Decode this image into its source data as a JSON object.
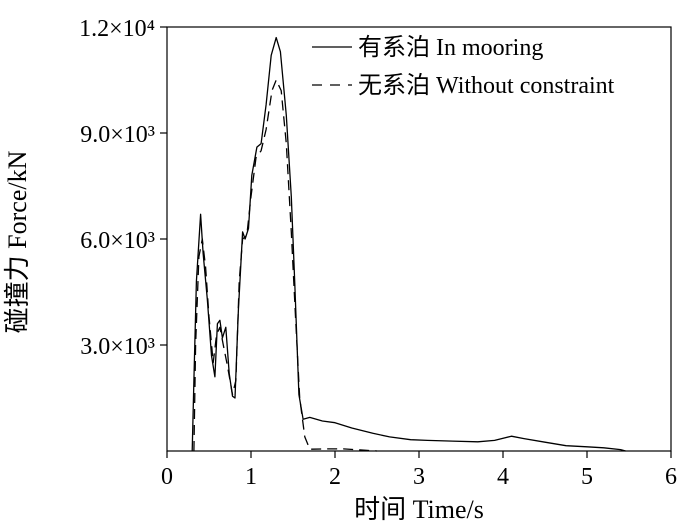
{
  "chart_data": {
    "type": "line",
    "xlabel": "时间 Time/s",
    "ylabel": "碰撞力 Force/kN",
    "xlim": [
      0,
      6
    ],
    "ylim": [
      0,
      12000
    ],
    "x_ticks": [
      0,
      1,
      2,
      3,
      4,
      5,
      6
    ],
    "x_tick_labels": [
      "0",
      "1",
      "2",
      "3",
      "4",
      "5",
      "6"
    ],
    "y_ticks": [
      3000,
      6000,
      9000,
      12000
    ],
    "y_tick_labels": [
      "3.0×10³",
      "6.0×10³",
      "9.0×10³",
      "1.2×10⁴"
    ],
    "grid": false,
    "legend_position": "top-right",
    "series": [
      {
        "name": "有系泊 In mooring",
        "style": "solid",
        "color": "#000000",
        "points": [
          [
            0.3,
            0
          ],
          [
            0.32,
            2000
          ],
          [
            0.35,
            4800
          ],
          [
            0.4,
            6700
          ],
          [
            0.43,
            5600
          ],
          [
            0.48,
            4300
          ],
          [
            0.53,
            2700
          ],
          [
            0.57,
            2100
          ],
          [
            0.6,
            3600
          ],
          [
            0.63,
            3700
          ],
          [
            0.66,
            3200
          ],
          [
            0.7,
            3500
          ],
          [
            0.74,
            2200
          ],
          [
            0.78,
            1550
          ],
          [
            0.81,
            1500
          ],
          [
            0.85,
            4000
          ],
          [
            0.9,
            6200
          ],
          [
            0.93,
            6000
          ],
          [
            0.97,
            6300
          ],
          [
            1.01,
            7800
          ],
          [
            1.07,
            8600
          ],
          [
            1.12,
            8700
          ],
          [
            1.18,
            9800
          ],
          [
            1.24,
            11200
          ],
          [
            1.3,
            11700
          ],
          [
            1.35,
            11300
          ],
          [
            1.42,
            9500
          ],
          [
            1.48,
            7200
          ],
          [
            1.52,
            4800
          ],
          [
            1.57,
            1600
          ],
          [
            1.62,
            900
          ],
          [
            1.7,
            950
          ],
          [
            1.85,
            850
          ],
          [
            2.0,
            800
          ],
          [
            2.2,
            650
          ],
          [
            2.45,
            500
          ],
          [
            2.65,
            400
          ],
          [
            2.9,
            320
          ],
          [
            3.1,
            300
          ],
          [
            3.4,
            280
          ],
          [
            3.7,
            260
          ],
          [
            3.9,
            300
          ],
          [
            4.1,
            420
          ],
          [
            4.25,
            350
          ],
          [
            4.5,
            250
          ],
          [
            4.75,
            150
          ],
          [
            5.0,
            120
          ],
          [
            5.2,
            90
          ],
          [
            5.4,
            40
          ],
          [
            5.46,
            0
          ]
        ]
      },
      {
        "name": "无系泊 Without constraint",
        "style": "dashed",
        "color": "#000000",
        "points": [
          [
            0.32,
            0
          ],
          [
            0.34,
            3000
          ],
          [
            0.38,
            5500
          ],
          [
            0.42,
            6000
          ],
          [
            0.46,
            5200
          ],
          [
            0.5,
            3800
          ],
          [
            0.55,
            2500
          ],
          [
            0.59,
            3300
          ],
          [
            0.63,
            3500
          ],
          [
            0.67,
            3000
          ],
          [
            0.72,
            2400
          ],
          [
            0.78,
            1600
          ],
          [
            0.82,
            2000
          ],
          [
            0.86,
            4800
          ],
          [
            0.9,
            6000
          ],
          [
            0.95,
            6100
          ],
          [
            1.0,
            7200
          ],
          [
            1.06,
            8300
          ],
          [
            1.12,
            8500
          ],
          [
            1.18,
            9100
          ],
          [
            1.25,
            10200
          ],
          [
            1.3,
            10500
          ],
          [
            1.36,
            10200
          ],
          [
            1.42,
            8700
          ],
          [
            1.48,
            6200
          ],
          [
            1.53,
            3800
          ],
          [
            1.58,
            1500
          ],
          [
            1.64,
            400
          ],
          [
            1.7,
            50
          ],
          [
            1.9,
            60
          ],
          [
            2.1,
            60
          ],
          [
            2.3,
            30
          ],
          [
            2.5,
            0
          ]
        ]
      }
    ]
  }
}
